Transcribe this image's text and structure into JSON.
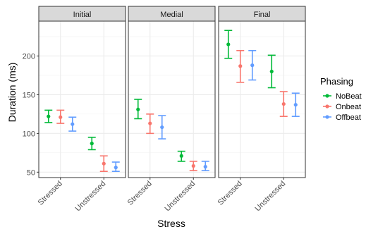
{
  "chart_data": {
    "type": "errorbar",
    "facets": [
      "Initial",
      "Medial",
      "Final"
    ],
    "categories": [
      "Stressed",
      "Unstressed"
    ],
    "xlabel": "Stress",
    "ylabel": "Duration (ms)",
    "ylim": [
      43,
      245
    ],
    "yticks": [
      50,
      100,
      150,
      200
    ],
    "grid": true,
    "legend": {
      "title": "Phasing",
      "position": "right"
    },
    "series": [
      {
        "name": "NoBeat",
        "color": "#00BA38",
        "points": [
          {
            "facet": "Initial",
            "category": "Stressed",
            "mean": 122,
            "lower": 114,
            "upper": 130
          },
          {
            "facet": "Initial",
            "category": "Unstressed",
            "mean": 87,
            "lower": 79,
            "upper": 95
          },
          {
            "facet": "Medial",
            "category": "Stressed",
            "mean": 131,
            "lower": 119,
            "upper": 144
          },
          {
            "facet": "Medial",
            "category": "Unstressed",
            "mean": 71,
            "lower": 64,
            "upper": 77
          },
          {
            "facet": "Final",
            "category": "Stressed",
            "mean": 215,
            "lower": 197,
            "upper": 233
          },
          {
            "facet": "Final",
            "category": "Unstressed",
            "mean": 180,
            "lower": 159,
            "upper": 201
          }
        ]
      },
      {
        "name": "Onbeat",
        "color": "#F8766D",
        "points": [
          {
            "facet": "Initial",
            "category": "Stressed",
            "mean": 121,
            "lower": 113,
            "upper": 130
          },
          {
            "facet": "Initial",
            "category": "Unstressed",
            "mean": 61,
            "lower": 51,
            "upper": 71
          },
          {
            "facet": "Medial",
            "category": "Stressed",
            "mean": 113,
            "lower": 100,
            "upper": 125
          },
          {
            "facet": "Medial",
            "category": "Unstressed",
            "mean": 58,
            "lower": 52,
            "upper": 64
          },
          {
            "facet": "Final",
            "category": "Stressed",
            "mean": 187,
            "lower": 166,
            "upper": 207
          },
          {
            "facet": "Final",
            "category": "Unstressed",
            "mean": 138,
            "lower": 122,
            "upper": 154
          }
        ]
      },
      {
        "name": "Offbeat",
        "color": "#619CFF",
        "points": [
          {
            "facet": "Initial",
            "category": "Stressed",
            "mean": 112,
            "lower": 103,
            "upper": 121
          },
          {
            "facet": "Initial",
            "category": "Unstressed",
            "mean": 56,
            "lower": 51,
            "upper": 63
          },
          {
            "facet": "Medial",
            "category": "Stressed",
            "mean": 108,
            "lower": 93,
            "upper": 123
          },
          {
            "facet": "Medial",
            "category": "Unstressed",
            "mean": 57,
            "lower": 52,
            "upper": 64
          },
          {
            "facet": "Final",
            "category": "Stressed",
            "mean": 188,
            "lower": 169,
            "upper": 207
          },
          {
            "facet": "Final",
            "category": "Unstressed",
            "mean": 137,
            "lower": 122,
            "upper": 152
          }
        ]
      }
    ]
  }
}
